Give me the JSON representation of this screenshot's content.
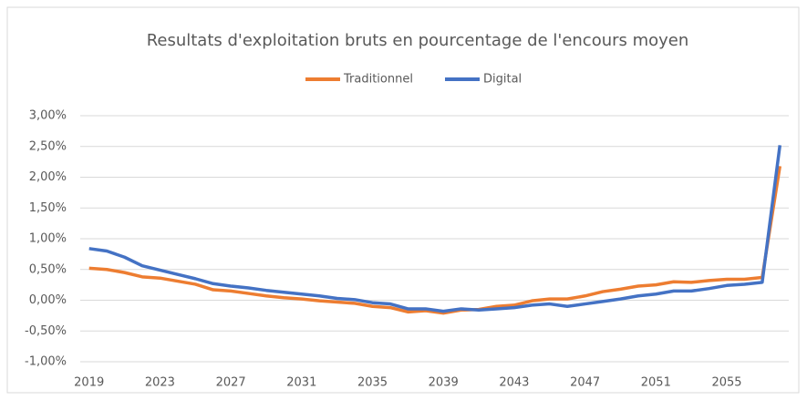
{
  "chart_data": {
    "type": "line",
    "title": "Resultats d'exploitation bruts en pourcentage de l'encours moyen",
    "x": [
      2019,
      2020,
      2021,
      2022,
      2023,
      2024,
      2025,
      2026,
      2027,
      2028,
      2029,
      2030,
      2031,
      2032,
      2033,
      2034,
      2035,
      2036,
      2037,
      2038,
      2039,
      2040,
      2041,
      2042,
      2043,
      2044,
      2045,
      2046,
      2047,
      2048,
      2049,
      2050,
      2051,
      2052,
      2053,
      2054,
      2055,
      2056,
      2057,
      2058
    ],
    "xlim": [
      2018.5,
      2058.5
    ],
    "xticks": [
      2019,
      2023,
      2027,
      2031,
      2035,
      2039,
      2043,
      2047,
      2051,
      2055
    ],
    "ylim": [
      -1,
      3
    ],
    "yticks": [
      {
        "value": -1,
        "label": "-1,00%"
      },
      {
        "value": -0.5,
        "label": "-0,50%"
      },
      {
        "value": 0,
        "label": "0,00%"
      },
      {
        "value": 0.5,
        "label": "0,50%"
      },
      {
        "value": 1,
        "label": "1,00%"
      },
      {
        "value": 1.5,
        "label": "1,50%"
      },
      {
        "value": 2,
        "label": "2,00%"
      },
      {
        "value": 2.5,
        "label": "2,50%"
      },
      {
        "value": 3,
        "label": "3,00%"
      }
    ],
    "grid": true,
    "legend": "top",
    "series": [
      {
        "name": "Traditionnel",
        "color": "#ed7d31",
        "values": [
          0.52,
          0.5,
          0.45,
          0.38,
          0.36,
          0.31,
          0.26,
          0.17,
          0.15,
          0.11,
          0.07,
          0.04,
          0.02,
          -0.01,
          -0.03,
          -0.05,
          -0.1,
          -0.12,
          -0.19,
          -0.17,
          -0.21,
          -0.16,
          -0.15,
          -0.1,
          -0.08,
          -0.01,
          0.02,
          0.02,
          0.07,
          0.14,
          0.18,
          0.23,
          0.25,
          0.3,
          0.29,
          0.32,
          0.34,
          0.34,
          0.37,
          2.18
        ]
      },
      {
        "name": "Digital",
        "color": "#4472c4",
        "values": [
          0.84,
          0.8,
          0.7,
          0.56,
          0.49,
          0.42,
          0.35,
          0.27,
          0.23,
          0.2,
          0.16,
          0.13,
          0.1,
          0.07,
          0.03,
          0.01,
          -0.04,
          -0.06,
          -0.14,
          -0.14,
          -0.18,
          -0.14,
          -0.16,
          -0.14,
          -0.12,
          -0.08,
          -0.06,
          -0.1,
          -0.06,
          -0.02,
          0.02,
          0.07,
          0.1,
          0.15,
          0.15,
          0.19,
          0.24,
          0.26,
          0.29,
          2.52
        ]
      }
    ]
  }
}
